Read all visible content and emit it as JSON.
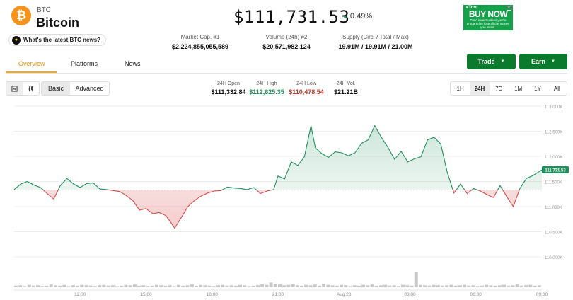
{
  "coin": {
    "symbol": "BTC",
    "name": "Bitcoin",
    "logo_glyph": "₿",
    "news_prompt": "What's the latest BTC news?"
  },
  "price": {
    "value": "$111,731.53",
    "change": "0.49%",
    "change_dir": "up"
  },
  "ad": {
    "brand": "eToro",
    "headline": "BUY NOW",
    "disclaimer": "Don't invest unless you're prepared to lose all the money you invest."
  },
  "stats": [
    {
      "label": "Market Cap. #1",
      "value": "$2,224,855,055,589"
    },
    {
      "label": "Volume (24h) #2",
      "value": "$20,571,982,124"
    },
    {
      "label": "Supply (Circ. / Total / Max)",
      "value": "19.91M / 19.91M / 21.00M"
    }
  ],
  "tabs": [
    "Overview",
    "Platforms",
    "News"
  ],
  "actions": {
    "trade": "Trade",
    "earn": "Earn"
  },
  "chart_modes": {
    "basic": "Basic",
    "advanced": "Advanced"
  },
  "day_stats": {
    "open": {
      "label": "24H Open",
      "value": "$111,332.84"
    },
    "high": {
      "label": "24H High",
      "value": "$112,625.35"
    },
    "low": {
      "label": "24H Low",
      "value": "$110,478.54"
    },
    "volume": {
      "label": "24H Vol.",
      "value": "$21.21B"
    }
  },
  "ranges": [
    "1H",
    "24H",
    "7D",
    "1M",
    "1Y",
    "All"
  ],
  "active_range": "24H",
  "colors": {
    "up": "#1f8f5c",
    "down": "#d94a4a",
    "accent": "#f5a623",
    "button": "#0c7a2c"
  },
  "chart_data": {
    "type": "area",
    "title": "",
    "open": 111332.84,
    "last_label": "111,731.53",
    "last": 111731.53,
    "ylim": [
      110000,
      113000
    ],
    "yticks": [
      {
        "v": 113000,
        "label": "113,000K"
      },
      {
        "v": 112500,
        "label": "112,500K"
      },
      {
        "v": 112000,
        "label": "112,000K"
      },
      {
        "v": 111500,
        "label": "111,500K"
      },
      {
        "v": 111000,
        "label": "111,000K"
      },
      {
        "v": 110500,
        "label": "110,500K"
      },
      {
        "v": 110000,
        "label": "110,000K"
      }
    ],
    "xlim": [
      9.0,
      33.0
    ],
    "xticks": [
      {
        "t": 12,
        "label": "12:00"
      },
      {
        "t": 15,
        "label": "15:00"
      },
      {
        "t": 18,
        "label": "18:00"
      },
      {
        "t": 21,
        "label": "21:00"
      },
      {
        "t": 24,
        "label": "Aug 28"
      },
      {
        "t": 27,
        "label": "03:00"
      },
      {
        "t": 30,
        "label": "06:00"
      },
      {
        "t": 33,
        "label": "09:00"
      }
    ],
    "price_points": [
      [
        9.0,
        111340
      ],
      [
        9.3,
        111450
      ],
      [
        9.6,
        111500
      ],
      [
        9.9,
        111430
      ],
      [
        10.2,
        111380
      ],
      [
        10.5,
        111260
      ],
      [
        10.8,
        111150
      ],
      [
        11.1,
        111420
      ],
      [
        11.4,
        111560
      ],
      [
        11.7,
        111450
      ],
      [
        12.0,
        111380
      ],
      [
        12.3,
        111460
      ],
      [
        12.6,
        111470
      ],
      [
        12.9,
        111350
      ],
      [
        13.2,
        111340
      ],
      [
        13.5,
        111320
      ],
      [
        13.8,
        111300
      ],
      [
        14.1,
        111220
      ],
      [
        14.4,
        111120
      ],
      [
        14.7,
        110930
      ],
      [
        15.0,
        110960
      ],
      [
        15.3,
        110860
      ],
      [
        15.6,
        110880
      ],
      [
        15.9,
        110820
      ],
      [
        16.1,
        110700
      ],
      [
        16.3,
        110570
      ],
      [
        16.6,
        110780
      ],
      [
        16.9,
        111000
      ],
      [
        17.2,
        111120
      ],
      [
        17.5,
        111210
      ],
      [
        17.8,
        111270
      ],
      [
        18.1,
        111310
      ],
      [
        18.4,
        111320
      ],
      [
        18.7,
        111390
      ],
      [
        19.0,
        111370
      ],
      [
        19.3,
        111360
      ],
      [
        19.6,
        111340
      ],
      [
        19.9,
        111380
      ],
      [
        20.2,
        111260
      ],
      [
        20.5,
        111310
      ],
      [
        20.8,
        111340
      ],
      [
        21.0,
        111610
      ],
      [
        21.3,
        111550
      ],
      [
        21.6,
        111890
      ],
      [
        21.9,
        111820
      ],
      [
        22.2,
        111990
      ],
      [
        22.5,
        112610
      ],
      [
        22.7,
        112170
      ],
      [
        23.0,
        112050
      ],
      [
        23.3,
        111980
      ],
      [
        23.6,
        112090
      ],
      [
        23.9,
        112070
      ],
      [
        24.2,
        112010
      ],
      [
        24.5,
        112070
      ],
      [
        24.8,
        112260
      ],
      [
        25.1,
        112330
      ],
      [
        25.4,
        112610
      ],
      [
        25.7,
        112380
      ],
      [
        26.0,
        112180
      ],
      [
        26.3,
        111940
      ],
      [
        26.6,
        112100
      ],
      [
        26.9,
        111890
      ],
      [
        27.2,
        111950
      ],
      [
        27.5,
        111990
      ],
      [
        27.8,
        112330
      ],
      [
        28.1,
        112380
      ],
      [
        28.4,
        112250
      ],
      [
        28.7,
        111680
      ],
      [
        29.0,
        111270
      ],
      [
        29.3,
        111450
      ],
      [
        29.6,
        111260
      ],
      [
        29.9,
        111360
      ],
      [
        30.2,
        111310
      ],
      [
        30.5,
        111240
      ],
      [
        30.8,
        111180
      ],
      [
        31.1,
        111420
      ],
      [
        31.4,
        111200
      ],
      [
        31.7,
        111000
      ],
      [
        32.0,
        111360
      ],
      [
        32.3,
        111560
      ],
      [
        32.6,
        111620
      ],
      [
        33.0,
        111731.53
      ]
    ],
    "volume_relative": [
      4,
      5,
      3,
      6,
      4,
      5,
      3,
      4,
      7,
      5,
      4,
      6,
      3,
      5,
      4,
      6,
      5,
      4,
      3,
      5,
      6,
      4,
      5,
      3,
      4,
      6,
      5,
      7,
      4,
      5,
      3,
      4,
      6,
      5,
      4,
      5,
      3,
      6,
      4,
      5,
      7,
      4,
      6,
      5,
      4,
      3,
      5,
      6,
      4,
      5,
      4,
      6,
      5,
      3,
      4,
      5,
      8,
      6,
      12,
      9,
      7,
      5,
      6,
      8,
      5,
      4,
      6,
      5,
      7,
      4,
      9,
      6,
      5,
      4,
      6,
      5,
      3,
      5,
      4,
      6,
      5,
      7,
      4,
      5,
      6,
      4,
      5,
      3,
      6,
      5,
      4,
      40,
      6,
      5,
      4,
      6,
      5,
      4,
      5,
      6,
      4,
      5,
      6,
      4,
      5,
      3,
      4,
      6,
      5,
      4,
      5,
      6,
      4,
      5,
      7,
      4,
      5,
      6,
      4,
      5
    ]
  }
}
